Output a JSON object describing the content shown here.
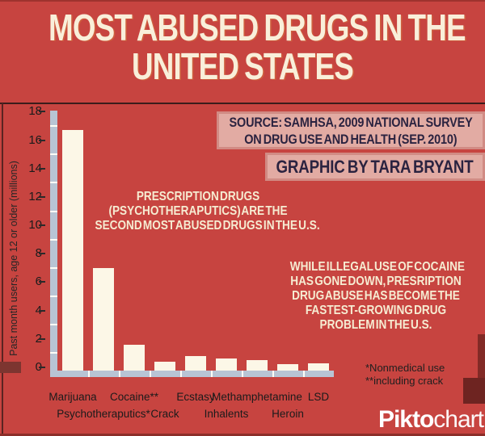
{
  "title": {
    "line1": "MOST ABUSED DRUGS IN THE",
    "line2": "UNITED STATES"
  },
  "source_box": {
    "line1": "SOURCE: SAMHSA, 2009 NATIONAL SURVEY",
    "line2": "ON DRUG USE AND HEALTH (SEP. 2010)"
  },
  "credit_box": {
    "text": "GRAPHIC BY TARA BRYANT"
  },
  "annotations": {
    "psychotherapeutics": [
      "PRESCRIPTION DRUGS",
      "(PSYCHOTHERAPUTICS) ARE THE",
      "SECOND MOST ABUSED DRUGS IN THE U.S."
    ],
    "cocaine": [
      "WHILE ILLEGAL USE OF COCAINE",
      "HAS GONE DOWN, PRESRIPTION",
      "DRUG ABUSE HAS BECOME THE",
      "FASTEST-GROWING DRUG",
      "PROBLEM IN THE U.S."
    ]
  },
  "footnotes": [
    "*Nonmedical use",
    "**including crack"
  ],
  "logo": {
    "bold": "Pikto",
    "light": "chart"
  },
  "chart_data": {
    "type": "bar",
    "title": "",
    "xlabel": "",
    "ylabel": "Past month users, age 12 or older (millions)",
    "ylim": [
      0,
      18
    ],
    "ytick_step": 2,
    "grid": false,
    "legend": "none",
    "categories": [
      "Marijuana",
      "Psychotheraputics*",
      "Cocaine**",
      "Crack",
      "Ecstasy",
      "Inhalents",
      "Methamphetamine",
      "Heroin",
      "LSD"
    ],
    "values": [
      16.7,
      7.0,
      1.6,
      0.4,
      0.8,
      0.6,
      0.5,
      0.2,
      0.3
    ]
  },
  "colors": {
    "background": "#c74440",
    "bar_fill": "#fcf7e7",
    "axis": "#b8c4d4",
    "pink_box_fill": "#e2aba3",
    "pink_box_border": "#d18b84",
    "box_text": "#2b2340",
    "cream_text": "#f6ecd2",
    "dark_text": "#1f1f1f",
    "divider": "#3b1c1b",
    "logo": "#ffffff"
  }
}
